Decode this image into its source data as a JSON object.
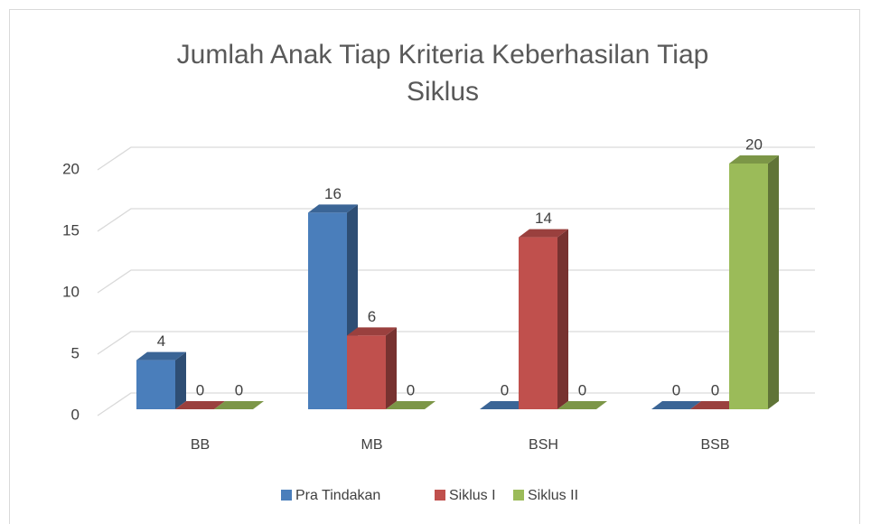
{
  "chart_data": {
    "type": "bar3d",
    "title": [
      "Jumlah Anak Tiap Kriteria Keberhasilan Tiap",
      "Siklus"
    ],
    "categories": [
      "BB",
      "MB",
      "BSH",
      "BSB"
    ],
    "series": [
      {
        "name": "Pra Tindakan",
        "color": "#4a7ebb",
        "values": [
          4,
          16,
          0,
          0
        ]
      },
      {
        "name": "Siklus I",
        "color": "#c0504d",
        "values": [
          0,
          6,
          14,
          0
        ]
      },
      {
        "name": "Siklus II",
        "color": "#9bbb59",
        "values": [
          0,
          0,
          0,
          20
        ]
      }
    ],
    "ylim": [
      0,
      20
    ],
    "yticks": [
      0,
      5,
      10,
      15,
      20
    ],
    "grid": true,
    "legend": "bottom"
  }
}
